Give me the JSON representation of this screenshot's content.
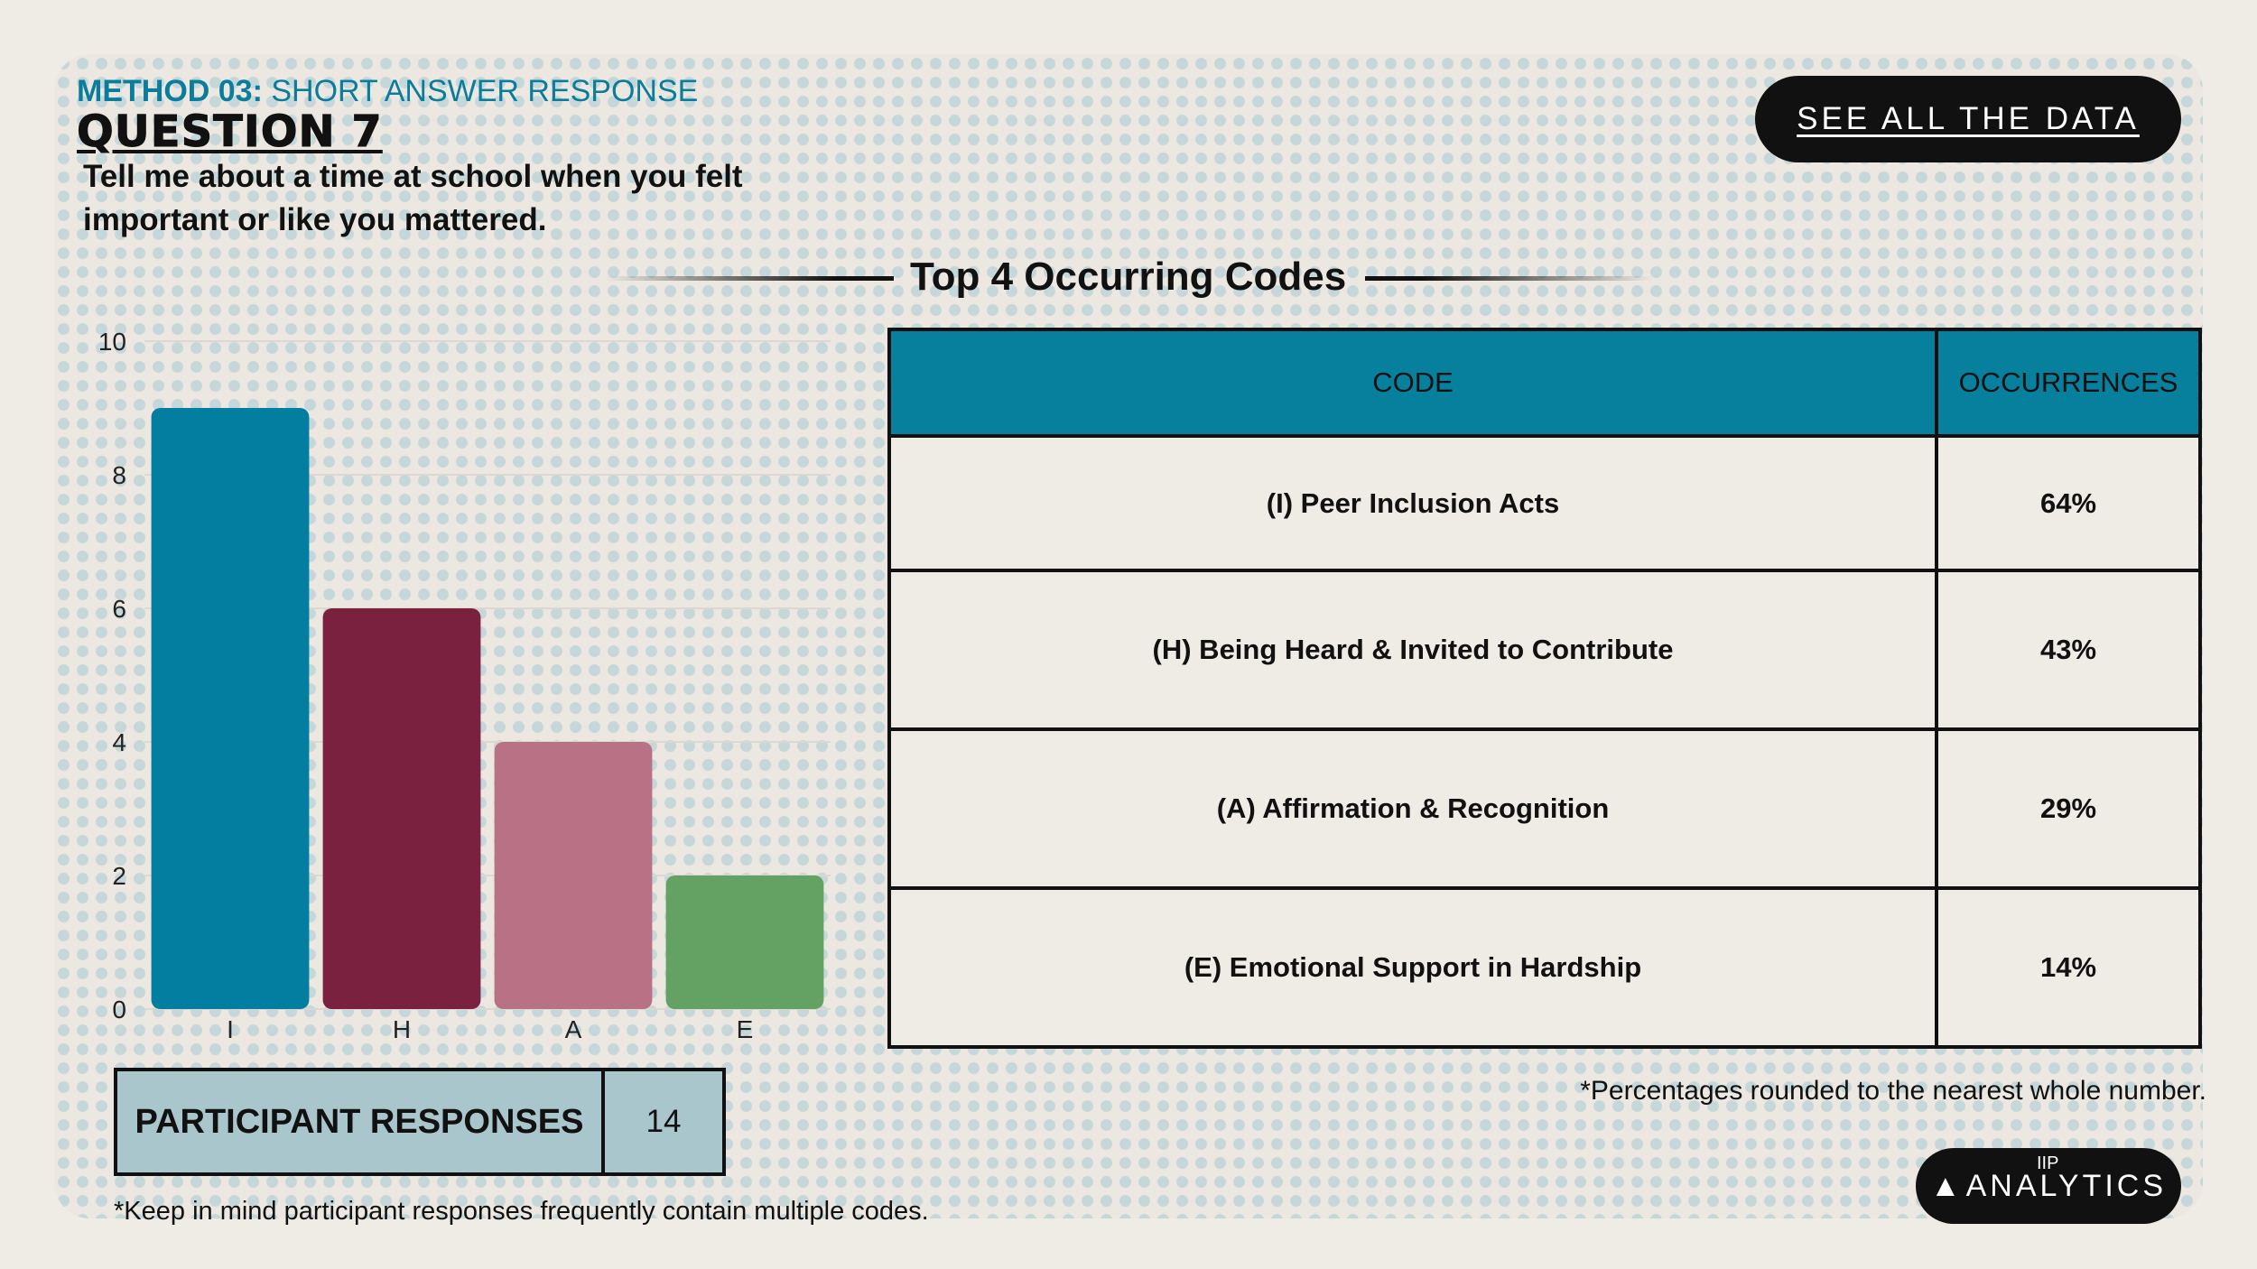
{
  "header": {
    "method_bold": "METHOD 03:",
    "method_rest": " SHORT ANSWER RESPONSE",
    "question": "QUESTION 7",
    "prompt": "Tell me about a time at school when you felt important or like you mattered."
  },
  "buttons": {
    "see_all_data": "SEE ALL THE DATA"
  },
  "section": {
    "title": "Top 4 Occurring Codes"
  },
  "table": {
    "headers": [
      "CODE",
      "OCCURRENCES"
    ],
    "rows": [
      {
        "code": "(I) Peer Inclusion Acts",
        "occurrences": "64%"
      },
      {
        "code": "(H) Being Heard & Invited to Contribute",
        "occurrences": "43%"
      },
      {
        "code": "(A) Affirmation & Recognition",
        "occurrences": "29%"
      },
      {
        "code": "(E) Emotional Support in Hardship",
        "occurrences": "14%"
      }
    ]
  },
  "notes": {
    "percentages": "*Percentages rounded to the nearest whole number.",
    "codes": "*Keep in mind participant responses frequently contain multiple codes."
  },
  "participants": {
    "label": "PARTICIPANT RESPONSES",
    "value": "14"
  },
  "logo": {
    "mark": "IIP",
    "text": "ANALYTICS"
  },
  "chart_data": {
    "type": "bar",
    "categories": [
      "I",
      "H",
      "A",
      "E"
    ],
    "values": [
      9,
      6,
      4,
      2
    ],
    "colors": [
      "#037ea0",
      "#7b2140",
      "#b97285",
      "#63a262"
    ],
    "ylim": [
      0,
      10
    ],
    "yticks": [
      0,
      2,
      4,
      6,
      8,
      10
    ],
    "grid": true,
    "xlabel": "",
    "ylabel": ""
  }
}
